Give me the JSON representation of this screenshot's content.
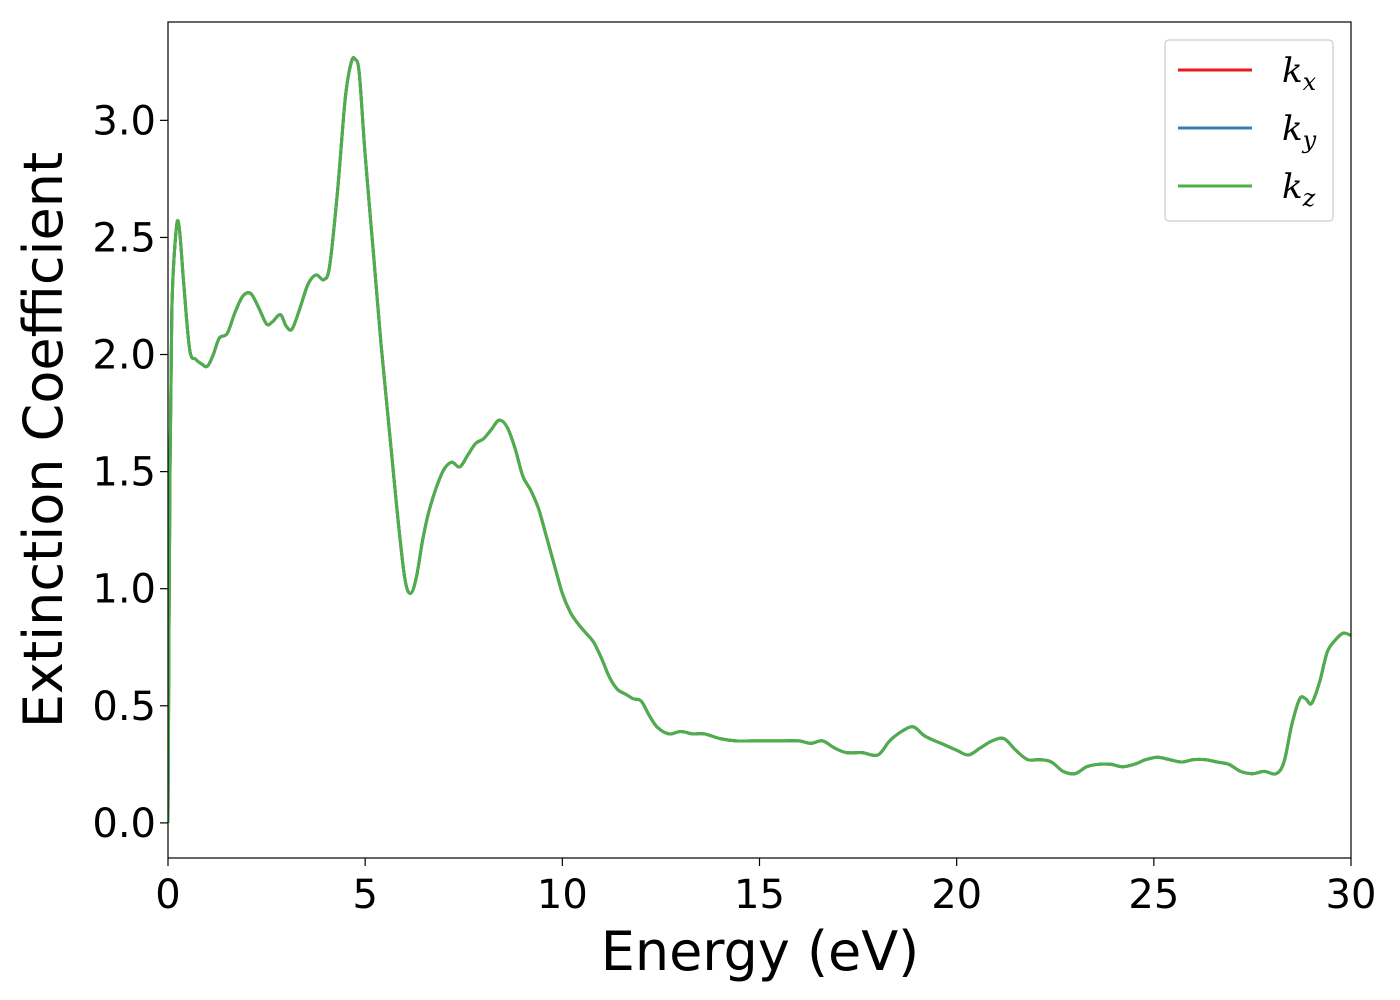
{
  "chart_data": {
    "type": "line",
    "title": "",
    "xlabel": "Energy (eV)",
    "ylabel": "Extinction Coefficient",
    "xlim": [
      0,
      30
    ],
    "ylim": [
      -0.15,
      3.42
    ],
    "xticks": [
      0,
      5,
      10,
      15,
      20,
      25,
      30
    ],
    "yticks": [
      0.0,
      0.5,
      1.0,
      1.5,
      2.0,
      2.5,
      3.0
    ],
    "xtick_labels": [
      "0",
      "5",
      "10",
      "15",
      "20",
      "25",
      "30"
    ],
    "ytick_labels": [
      "0.0",
      "0.5",
      "1.0",
      "1.5",
      "2.0",
      "2.5",
      "3.0"
    ],
    "grid": false,
    "legend_position": "top-right",
    "series": [
      {
        "name": "k_x",
        "label_main": "k",
        "label_sub": "x",
        "color": "#e41a1c"
      },
      {
        "name": "k_y",
        "label_main": "k",
        "label_sub": "y",
        "color": "#377eb8"
      },
      {
        "name": "k_z",
        "label_main": "k",
        "label_sub": "z",
        "color": "#4daf4a"
      }
    ],
    "x": [
      0.0,
      0.05,
      0.1,
      0.2,
      0.28,
      0.4,
      0.55,
      0.7,
      0.85,
      1.0,
      1.15,
      1.3,
      1.5,
      1.7,
      1.9,
      2.1,
      2.3,
      2.5,
      2.65,
      2.85,
      3.0,
      3.15,
      3.35,
      3.55,
      3.75,
      3.95,
      4.1,
      4.3,
      4.5,
      4.65,
      4.75,
      4.85,
      5.0,
      5.2,
      5.4,
      5.6,
      5.8,
      6.0,
      6.15,
      6.3,
      6.45,
      6.6,
      6.8,
      7.0,
      7.2,
      7.4,
      7.6,
      7.8,
      8.0,
      8.2,
      8.4,
      8.6,
      8.8,
      9.0,
      9.2,
      9.4,
      9.6,
      9.8,
      10.0,
      10.2,
      10.4,
      10.6,
      10.8,
      11.0,
      11.2,
      11.4,
      11.6,
      11.8,
      12.0,
      12.2,
      12.4,
      12.7,
      13.0,
      13.3,
      13.6,
      14.0,
      14.4,
      14.8,
      15.2,
      15.6,
      16.0,
      16.3,
      16.6,
      16.9,
      17.2,
      17.6,
      18.0,
      18.3,
      18.6,
      18.9,
      19.2,
      19.6,
      20.0,
      20.3,
      20.6,
      20.9,
      21.2,
      21.5,
      21.8,
      22.1,
      22.4,
      22.7,
      23.0,
      23.3,
      23.6,
      23.9,
      24.2,
      24.5,
      24.8,
      25.1,
      25.4,
      25.7,
      26.0,
      26.3,
      26.6,
      26.9,
      27.2,
      27.5,
      27.8,
      28.1,
      28.3,
      28.5,
      28.7,
      28.85,
      29.0,
      29.2,
      29.4,
      29.6,
      29.8,
      30.0
    ],
    "y": [
      0.0,
      1.5,
      2.2,
      2.52,
      2.55,
      2.3,
      2.02,
      1.98,
      1.96,
      1.95,
      2.0,
      2.07,
      2.09,
      2.18,
      2.25,
      2.26,
      2.2,
      2.13,
      2.14,
      2.17,
      2.12,
      2.11,
      2.2,
      2.3,
      2.34,
      2.32,
      2.38,
      2.7,
      3.1,
      3.25,
      3.26,
      3.2,
      2.85,
      2.45,
      2.05,
      1.7,
      1.35,
      1.05,
      0.98,
      1.05,
      1.2,
      1.32,
      1.43,
      1.51,
      1.54,
      1.52,
      1.57,
      1.62,
      1.64,
      1.68,
      1.72,
      1.69,
      1.6,
      1.48,
      1.42,
      1.34,
      1.22,
      1.1,
      0.98,
      0.9,
      0.85,
      0.81,
      0.77,
      0.7,
      0.62,
      0.57,
      0.55,
      0.53,
      0.52,
      0.46,
      0.41,
      0.38,
      0.39,
      0.38,
      0.38,
      0.36,
      0.35,
      0.35,
      0.35,
      0.35,
      0.35,
      0.34,
      0.35,
      0.32,
      0.3,
      0.3,
      0.29,
      0.35,
      0.39,
      0.41,
      0.37,
      0.34,
      0.31,
      0.29,
      0.32,
      0.35,
      0.36,
      0.31,
      0.27,
      0.27,
      0.26,
      0.22,
      0.21,
      0.24,
      0.25,
      0.25,
      0.24,
      0.25,
      0.27,
      0.28,
      0.27,
      0.26,
      0.27,
      0.27,
      0.26,
      0.25,
      0.22,
      0.21,
      0.22,
      0.21,
      0.26,
      0.42,
      0.53,
      0.53,
      0.51,
      0.6,
      0.73,
      0.78,
      0.81,
      0.8
    ]
  }
}
